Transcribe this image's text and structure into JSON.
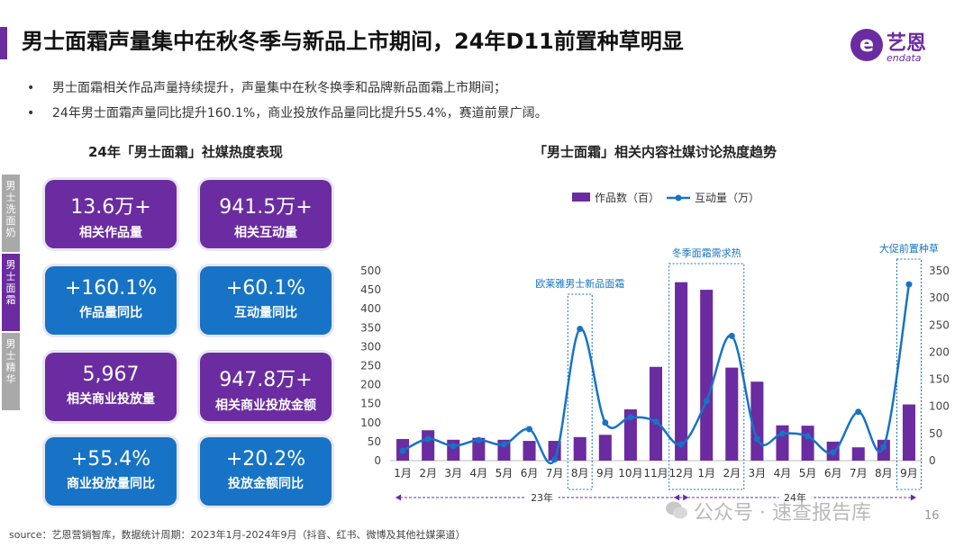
{
  "header": {
    "title": "男士面霜声量集中在秋冬季与新品上市期间，24年D11前置种草明显",
    "logo_mark": "e",
    "logo_cn": "艺恩",
    "logo_en": "endata"
  },
  "bullets": [
    "男士面霜相关作品声量持续提升，声量集中在秋冬换季和品牌新品面霜上市期间；",
    "24年男士面霜声量同比提升160.1%，商业投放作品量同比提升55.4%，赛道前景广阔。"
  ],
  "left_panel": {
    "title": "24年「男士面霜」社媒热度表现",
    "side_tabs": [
      {
        "label": "男士洗面奶",
        "color": "#a9a9a9"
      },
      {
        "label": "男士面霜",
        "color": "#6a2ca0"
      },
      {
        "label": "男士精华",
        "color": "#a9a9a9"
      }
    ],
    "cards": [
      {
        "value": "13.6万+",
        "label": "相关作品量",
        "color": "purple"
      },
      {
        "value": "941.5万+",
        "label": "相关互动量",
        "color": "purple"
      },
      {
        "value": "+160.1%",
        "label": "作品量同比",
        "color": "blue"
      },
      {
        "value": "+60.1%",
        "label": "互动量同比",
        "color": "blue"
      },
      {
        "value": "5,967",
        "label": "相关商业投放量",
        "color": "purple"
      },
      {
        "value": "947.8万+",
        "label": "相关商业投放金额",
        "color": "purple"
      },
      {
        "value": "+55.4%",
        "label": "商业投放量同比",
        "color": "blue"
      },
      {
        "value": "+20.2%",
        "label": "投放金额同比",
        "color": "blue"
      }
    ]
  },
  "chart_title": "「男士面霜」相关内容社媒讨论热度趋势",
  "chart_data": {
    "type": "bar",
    "categories": [
      "1月",
      "2月",
      "3月",
      "4月",
      "5月",
      "6月",
      "7月",
      "8月",
      "9月",
      "10月",
      "11月",
      "12月",
      "1月",
      "2月",
      "3月",
      "4月",
      "5月",
      "6月",
      "7月",
      "8月",
      "9月"
    ],
    "series": [
      {
        "name": "作品数（百）",
        "type": "bar",
        "axis": "left",
        "color": "#6a2ca0",
        "values": [
          57,
          80,
          55,
          60,
          55,
          52,
          52,
          62,
          68,
          135,
          247,
          470,
          450,
          245,
          208,
          93,
          92,
          50,
          35,
          55,
          148
        ]
      },
      {
        "name": "互动量（万）",
        "type": "line",
        "axis": "right",
        "color": "#1773c5",
        "values": [
          18,
          40,
          27,
          38,
          30,
          58,
          2,
          243,
          70,
          80,
          72,
          30,
          110,
          230,
          40,
          50,
          45,
          15,
          90,
          25,
          325
        ]
      }
    ],
    "ylim_left": [
      0,
      500
    ],
    "yticks_left": [
      0,
      50,
      100,
      150,
      200,
      250,
      300,
      350,
      400,
      450,
      500
    ],
    "ylim_right": [
      0,
      350
    ],
    "yticks_right": [
      0,
      50,
      100,
      150,
      200,
      250,
      300,
      350
    ],
    "year_labels": [
      "23年",
      "24年"
    ],
    "annotations": [
      {
        "text": "欧莱雅男士新品面霜",
        "from": 7,
        "to": 7
      },
      {
        "text": "冬季面霜需求热",
        "from": 11,
        "to": 13
      },
      {
        "text": "大促前置种草",
        "from": 20,
        "to": 20
      }
    ],
    "legend_position": "top"
  },
  "footer": {
    "source": "source：艺恩营销智库，数据统计周期：2023年1月-2024年9月（抖音、红书、微博及其他社媒渠道）",
    "watermark": "公众号 · 速查报告库",
    "page": "16"
  }
}
